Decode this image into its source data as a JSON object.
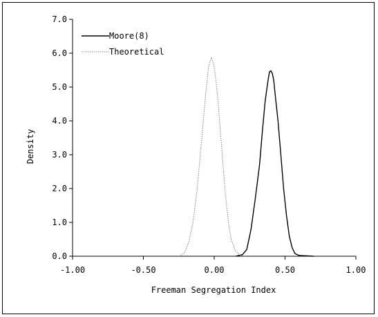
{
  "chart_data": {
    "type": "line",
    "xlabel": "Freeman Segregation Index",
    "ylabel": "Density",
    "xlim": [
      -1.0,
      1.0
    ],
    "ylim": [
      0.0,
      7.0
    ],
    "x_ticks": [
      "-1.00",
      "-0.50",
      "0.00",
      "0.50",
      "1.00"
    ],
    "y_ticks": [
      "0.0",
      "1.0",
      "2.0",
      "3.0",
      "4.0",
      "5.0",
      "6.0",
      "7.0"
    ],
    "grid": false,
    "legend_position": "top-left",
    "series": [
      {
        "name": "Moore(8)",
        "style": "solid",
        "color": "#000000",
        "points": [
          [
            0.15,
            0.0
          ],
          [
            0.2,
            0.05
          ],
          [
            0.23,
            0.2
          ],
          [
            0.26,
            0.8
          ],
          [
            0.29,
            1.7
          ],
          [
            0.32,
            2.7
          ],
          [
            0.34,
            3.7
          ],
          [
            0.36,
            4.6
          ],
          [
            0.38,
            5.2
          ],
          [
            0.39,
            5.45
          ],
          [
            0.4,
            5.48
          ],
          [
            0.41,
            5.4
          ],
          [
            0.42,
            5.2
          ],
          [
            0.43,
            4.8
          ],
          [
            0.45,
            4.0
          ],
          [
            0.47,
            3.0
          ],
          [
            0.49,
            2.0
          ],
          [
            0.51,
            1.2
          ],
          [
            0.53,
            0.6
          ],
          [
            0.55,
            0.25
          ],
          [
            0.57,
            0.08
          ],
          [
            0.6,
            0.02
          ],
          [
            0.7,
            0.0
          ]
        ]
      },
      {
        "name": "Theoretical",
        "style": "dotted",
        "color": "#808080",
        "points": [
          [
            -0.25,
            0.0
          ],
          [
            -0.21,
            0.1
          ],
          [
            -0.18,
            0.4
          ],
          [
            -0.15,
            1.0
          ],
          [
            -0.12,
            2.0
          ],
          [
            -0.09,
            3.4
          ],
          [
            -0.06,
            4.8
          ],
          [
            -0.04,
            5.6
          ],
          [
            -0.02,
            5.88
          ],
          [
            0.0,
            5.6
          ],
          [
            0.02,
            4.9
          ],
          [
            0.04,
            3.9
          ],
          [
            0.06,
            2.8
          ],
          [
            0.08,
            1.8
          ],
          [
            0.1,
            1.0
          ],
          [
            0.12,
            0.5
          ],
          [
            0.15,
            0.15
          ],
          [
            0.18,
            0.04
          ],
          [
            0.22,
            0.0
          ]
        ]
      }
    ]
  }
}
